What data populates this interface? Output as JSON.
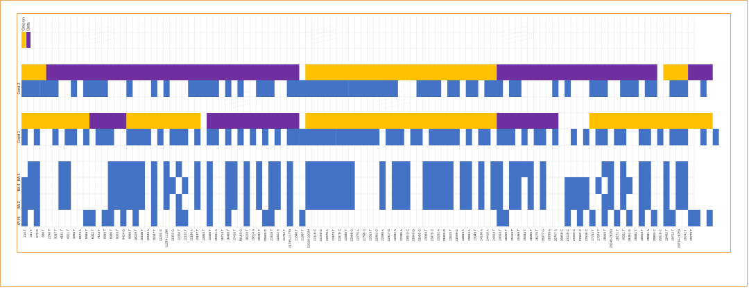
{
  "chart_data": {
    "type": "heatmap",
    "legend": {
      "placement": "top-left",
      "entries": [
        {
          "name": "Omicron",
          "color": "#ffc000"
        },
        {
          "name": "Delta",
          "color": "#7030a0"
        }
      ]
    },
    "colors": {
      "omicron": "#ffc000",
      "delta": "#7030a0",
      "mutation": "#4472c4",
      "frame": "#f0a35a",
      "grid": "#e6e6e6"
    },
    "rows": [
      "Covid 2",
      "Covid 1",
      "BA.5",
      "BA.4",
      "BA.2",
      "AY.45"
    ],
    "x_labels": [
      "210 T",
      "241 T",
      "670 G",
      "680 T",
      "2790 T",
      "3037 T",
      "4181 T",
      "4321 T",
      "4950 T",
      "5574 A",
      "5989 T",
      "6402 T",
      "7124 T",
      "8393 T",
      "8986 T",
      "9053 T",
      "9424 G",
      "9866 T",
      "10029 T",
      "10198 T",
      "10449 A",
      "10447 T",
      "11201 G",
      "11289-11296",
      "11332 G",
      "11550 T",
      "12102 T",
      "12160 A",
      "13197 T",
      "13953 T",
      "14408 T",
      "15451 A",
      "15714 T",
      "16466 T",
      "17410 T",
      "18163 G",
      "19220 T",
      "19814 A",
      "20032 T",
      "20660 G",
      "21618 T",
      "21622 A",
      "21762 T",
      "21765-21770",
      "21846 T",
      "21987 T",
      "22029-22034",
      "22118 C",
      "22200 G",
      "22578 A",
      "22673 T",
      "22679 C",
      "22686 T",
      "22688 G",
      "22775 A",
      "22786 C",
      "22813 T",
      "22882 G",
      "22898 A",
      "22917 G",
      "22992 A",
      "22995 A",
      "23013 C",
      "23040 G",
      "23055 G",
      "23063 T",
      "23075 C",
      "23202 A",
      "23403 G",
      "23525 T",
      "23599 G",
      "23604 A",
      "23854 A",
      "23948 T",
      "24130 A",
      "24410 A",
      "24424 T",
      "24503 T",
      "25000 T",
      "25413 T",
      "25469 T",
      "25584 T",
      "26060 T",
      "26270 T",
      "26577 G",
      "26709 A",
      "26767 C",
      "26858 C",
      "27225 C",
      "27259 C",
      "27382 C",
      "27638 C",
      "27752 T",
      "27874 T",
      "28093 T",
      "28248-28253",
      "28271 T",
      "28311 T",
      "28461 G",
      "28881 T",
      "28916 T",
      "28881 A",
      "28883 C",
      "29510 C",
      "29402 T",
      "29722 T",
      "29734-29759",
      "29742 T",
      "29770 T"
    ],
    "segments": {
      "Covid 2": [
        {
          "variant": "Omicron",
          "x": [
            0,
            3
          ]
        },
        {
          "variant": "Delta",
          "x": [
            4,
            44
          ]
        },
        {
          "variant": "Omicron",
          "x": [
            46,
            76
          ]
        },
        {
          "variant": "Delta",
          "x": [
            77,
            102
          ]
        },
        {
          "variant": "Omicron",
          "x": [
            104,
            107
          ]
        },
        {
          "variant": "Delta",
          "x": [
            108,
            111
          ]
        }
      ],
      "Covid 1": [
        {
          "variant": "Omicron",
          "x": [
            0,
            10
          ]
        },
        {
          "variant": "Delta",
          "x": [
            11,
            16
          ]
        },
        {
          "variant": "Omicron",
          "x": [
            17,
            28
          ]
        },
        {
          "variant": "Delta",
          "x": [
            30,
            44
          ]
        },
        {
          "variant": "Omicron",
          "x": [
            46,
            76
          ]
        },
        {
          "variant": "Delta",
          "x": [
            77,
            86
          ]
        },
        {
          "variant": "Omicron",
          "x": [
            92,
            111
          ]
        }
      ]
    },
    "cells": {
      "Covid 2": [
        [
          0,
          2
        ],
        [
          3,
          5
        ],
        [
          8,
          8
        ],
        [
          10,
          13
        ],
        [
          17,
          17
        ],
        [
          21,
          21
        ],
        [
          23,
          23
        ],
        [
          27,
          31
        ],
        [
          33,
          33
        ],
        [
          35,
          35
        ],
        [
          38,
          40
        ],
        [
          43,
          52
        ],
        [
          53,
          60
        ],
        [
          64,
          67
        ],
        [
          69,
          70
        ],
        [
          72,
          73
        ],
        [
          75,
          77
        ],
        [
          79,
          80
        ],
        [
          86,
          86
        ],
        [
          88,
          88
        ],
        [
          92,
          94
        ],
        [
          97,
          99
        ],
        [
          101,
          102
        ],
        [
          105,
          107
        ],
        [
          110,
          110
        ]
      ],
      "Covid 1": [
        [
          0,
          0
        ],
        [
          2,
          2
        ],
        [
          5,
          5
        ],
        [
          7,
          8
        ],
        [
          10,
          10
        ],
        [
          12,
          14
        ],
        [
          17,
          20
        ],
        [
          22,
          22
        ],
        [
          24,
          26
        ],
        [
          28,
          28
        ],
        [
          30,
          31
        ],
        [
          33,
          33
        ],
        [
          35,
          35
        ],
        [
          37,
          37
        ],
        [
          39,
          39
        ],
        [
          41,
          41
        ],
        [
          43,
          44
        ],
        [
          45,
          50
        ],
        [
          51,
          57
        ],
        [
          59,
          61
        ],
        [
          63,
          64
        ],
        [
          66,
          70
        ],
        [
          72,
          72
        ],
        [
          74,
          75
        ],
        [
          77,
          79
        ],
        [
          81,
          81
        ],
        [
          83,
          84
        ],
        [
          86,
          86
        ],
        [
          89,
          89
        ],
        [
          91,
          91
        ],
        [
          93,
          94
        ],
        [
          96,
          97
        ],
        [
          100,
          101
        ],
        [
          103,
          103
        ],
        [
          105,
          107
        ],
        [
          110,
          110
        ],
        [
          112,
          112
        ]
      ],
      "BA.5": [
        [
          1,
          2
        ],
        [
          6,
          7
        ],
        [
          14,
          19
        ],
        [
          21,
          21
        ],
        [
          23,
          23
        ],
        [
          25,
          25
        ],
        [
          28,
          28
        ],
        [
          30,
          30
        ],
        [
          33,
          34
        ],
        [
          36,
          36
        ],
        [
          38,
          38
        ],
        [
          40,
          41
        ],
        [
          43,
          43
        ],
        [
          46,
          53
        ],
        [
          58,
          58
        ],
        [
          60,
          62
        ],
        [
          65,
          69
        ],
        [
          71,
          72
        ],
        [
          74,
          74
        ],
        [
          76,
          77
        ],
        [
          79,
          82
        ],
        [
          84,
          84
        ],
        [
          94,
          95
        ],
        [
          97,
          97
        ],
        [
          100,
          101
        ],
        [
          104,
          104
        ],
        [
          106,
          107
        ]
      ],
      "BA.4": [
        [
          0,
          2
        ],
        [
          6,
          7
        ],
        [
          14,
          19
        ],
        [
          21,
          21
        ],
        [
          23,
          24
        ],
        [
          26,
          26
        ],
        [
          28,
          28
        ],
        [
          30,
          30
        ],
        [
          33,
          34
        ],
        [
          36,
          36
        ],
        [
          38,
          38
        ],
        [
          40,
          41
        ],
        [
          43,
          43
        ],
        [
          46,
          53
        ],
        [
          58,
          58
        ],
        [
          60,
          62
        ],
        [
          65,
          69
        ],
        [
          71,
          72
        ],
        [
          74,
          74
        ],
        [
          76,
          77
        ],
        [
          79,
          80
        ],
        [
          82,
          82
        ],
        [
          84,
          84
        ],
        [
          88,
          91
        ],
        [
          93,
          93
        ],
        [
          95,
          95
        ],
        [
          97,
          98
        ],
        [
          100,
          101
        ],
        [
          104,
          104
        ],
        [
          106,
          107
        ]
      ],
      "BA.2": [
        [
          0,
          2
        ],
        [
          6,
          7
        ],
        [
          14,
          19
        ],
        [
          21,
          21
        ],
        [
          23,
          23
        ],
        [
          25,
          25
        ],
        [
          28,
          28
        ],
        [
          30,
          30
        ],
        [
          33,
          34
        ],
        [
          36,
          36
        ],
        [
          38,
          38
        ],
        [
          40,
          41
        ],
        [
          43,
          43
        ],
        [
          46,
          53
        ],
        [
          58,
          58
        ],
        [
          60,
          62
        ],
        [
          65,
          69
        ],
        [
          71,
          72
        ],
        [
          74,
          74
        ],
        [
          76,
          77
        ],
        [
          79,
          80
        ],
        [
          82,
          82
        ],
        [
          84,
          84
        ],
        [
          88,
          91
        ],
        [
          94,
          95
        ],
        [
          97,
          97
        ],
        [
          100,
          101
        ],
        [
          104,
          104
        ],
        [
          106,
          107
        ]
      ],
      "AY.45": [
        [
          0,
          0
        ],
        [
          2,
          2
        ],
        [
          10,
          11
        ],
        [
          13,
          14
        ],
        [
          16,
          16
        ],
        [
          18,
          18
        ],
        [
          21,
          21
        ],
        [
          25,
          26
        ],
        [
          30,
          30
        ],
        [
          33,
          33
        ],
        [
          36,
          36
        ],
        [
          39,
          40
        ],
        [
          43,
          43
        ],
        [
          45,
          45
        ],
        [
          77,
          78
        ],
        [
          88,
          88
        ],
        [
          90,
          90
        ],
        [
          92,
          92
        ],
        [
          94,
          94
        ],
        [
          96,
          96
        ],
        [
          98,
          98
        ],
        [
          100,
          100
        ],
        [
          102,
          102
        ],
        [
          104,
          105
        ],
        [
          108,
          109
        ],
        [
          111,
          111
        ]
      ]
    }
  }
}
